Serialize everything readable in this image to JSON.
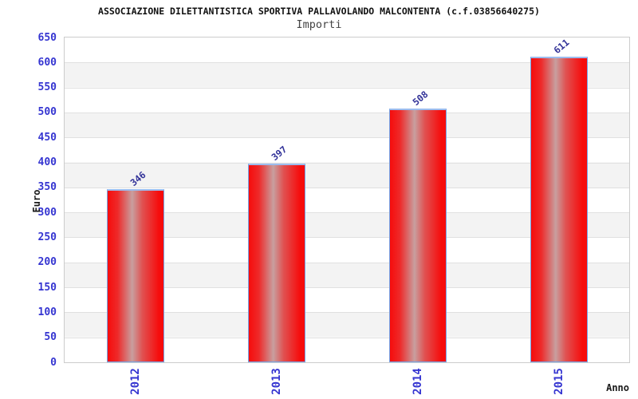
{
  "chart_data": {
    "type": "bar",
    "title": "ASSOCIAZIONE DILETTANTISTICA SPORTIVA PALLAVOLANDO MALCONTENTA (c.f.03856640275)",
    "subtitle": "Importi",
    "xlabel": "Anno",
    "ylabel": "Euro",
    "categories": [
      "2012",
      "2013",
      "2014",
      "2015"
    ],
    "values": [
      346,
      397,
      508,
      611
    ],
    "ylim": [
      0,
      650
    ],
    "ytick_interval": 50,
    "yticks": [
      0,
      50,
      100,
      150,
      200,
      250,
      300,
      350,
      400,
      450,
      500,
      550,
      600,
      650
    ],
    "grid": "horizontal-bands-alternating-white-gray",
    "legend": "none",
    "bar_orientation": "vertical",
    "colors": {
      "bar_fill_edge": "#f60c0c",
      "bar_fill_center": "#c89f9f",
      "bar_border": "#74a4e8",
      "tick_label": "#3535d1",
      "value_label": "#333399",
      "title": "#111111",
      "subtitle": "#444444",
      "axis_title": "#1a1a1a",
      "band_gray": "#f3f3f3",
      "gridline": "#e0e0e0",
      "plot_border": "#cccccc",
      "background": "#ffffff"
    }
  }
}
